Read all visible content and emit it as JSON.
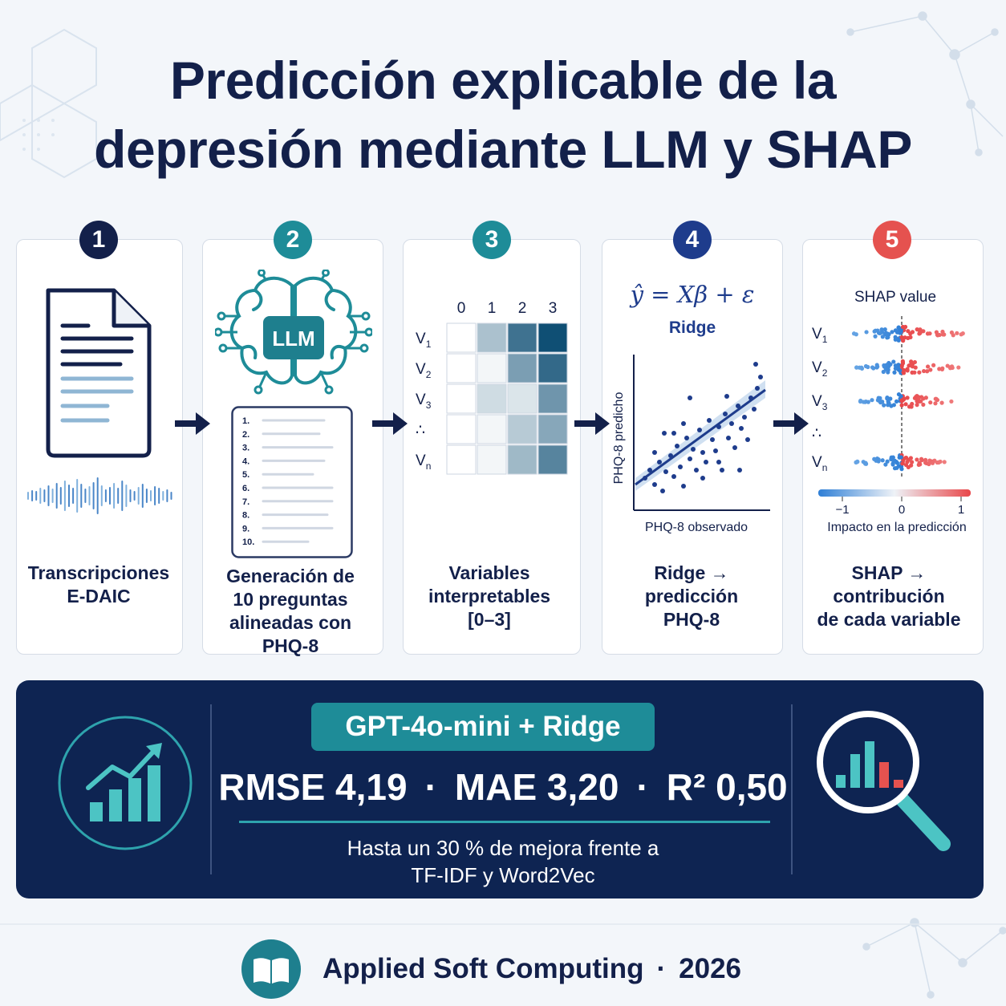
{
  "title": {
    "line1": "Predicción  explicable de la",
    "line2": "depresión mediante LLM y SHAP"
  },
  "steps": [
    {
      "number": "1",
      "color": "#13204a",
      "label_lines": [
        "Transcripciones",
        "E-DAIC"
      ]
    },
    {
      "number": "2",
      "color": "#1e8c98",
      "label_lines": [
        "Generación de",
        "10 preguntas",
        "alineadas con",
        "PHQ-8"
      ]
    },
    {
      "number": "3",
      "color": "#1e8c98",
      "label_lines": [
        "Variables",
        "interpretables",
        "[0–3]"
      ]
    },
    {
      "number": "4",
      "color": "#1e3c8c",
      "label_lines": [
        "Ridge →",
        "predicción",
        "PHQ-8"
      ]
    },
    {
      "number": "5",
      "color": "#e5524f",
      "label_lines": [
        "SHAP →",
        "contribución",
        "de cada variable"
      ]
    }
  ],
  "llm": {
    "chip_label": "LLM",
    "question_numbers": [
      "1.",
      "2.",
      "3.",
      "4.",
      "5.",
      "6.",
      "7.",
      "8.",
      "9.",
      "10."
    ]
  },
  "heatmap": {
    "columns": [
      "0",
      "1",
      "2",
      "3"
    ],
    "rows": [
      {
        "base": "V",
        "sub": "1"
      },
      {
        "base": "V",
        "sub": "2"
      },
      {
        "base": "V",
        "sub": "3"
      },
      {
        "base": "∴",
        "sub": ""
      },
      {
        "base": "V",
        "sub": "n"
      }
    ],
    "intensity": [
      [
        0.0,
        0.35,
        0.8,
        1.0
      ],
      [
        0.0,
        0.05,
        0.55,
        0.85
      ],
      [
        0.0,
        0.2,
        0.15,
        0.6
      ],
      [
        0.0,
        0.05,
        0.3,
        0.5
      ],
      [
        0.0,
        0.05,
        0.4,
        0.7
      ]
    ]
  },
  "regression": {
    "equation": "ŷ = Xβ + ε",
    "model": "Ridge",
    "xlabel": "PHQ-8 observado",
    "ylabel": "PHQ-8 predicho"
  },
  "shap": {
    "title": "SHAP value",
    "rows": [
      {
        "base": "V",
        "sub": "1"
      },
      {
        "base": "V",
        "sub": "2"
      },
      {
        "base": "V",
        "sub": "3"
      },
      {
        "base": "∴",
        "sub": ""
      },
      {
        "base": "V",
        "sub": "n"
      }
    ],
    "ticks": [
      "−1",
      "0",
      "1"
    ],
    "xlabel": "Impacto en la predicción",
    "neg_color": "#2f7fd6",
    "pos_color": "#e8474a"
  },
  "banner": {
    "model": "GPT-4o-mini + Ridge",
    "rmse_label": "RMSE",
    "rmse": "4,19",
    "mae_label": "MAE",
    "mae": "3,20",
    "r2_label": "R²",
    "r2": "0,50",
    "separator": "·",
    "note_line1": "Hasta un 30 % de mejora frente a",
    "note_line2": "TF-IDF y Word2Vec"
  },
  "footer": {
    "journal": "Applied Soft Computing",
    "separator": "·",
    "year": "2026"
  },
  "colors": {
    "navy": "#13204a",
    "teal": "#1e8c98",
    "banner_bg": "#0e2452",
    "red": "#e5524f"
  }
}
